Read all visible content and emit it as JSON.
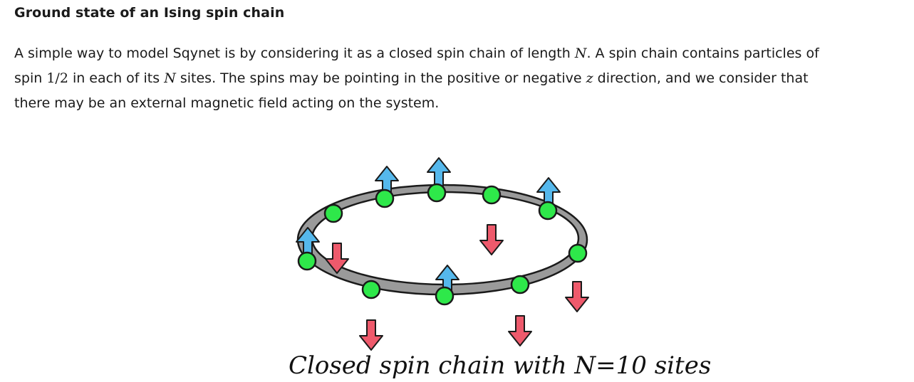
{
  "title": "Ground state of an Ising spin chain",
  "paragraph": {
    "line1": [
      "A simple way to model Sqynet is by considering it as a closed spin chain of length ",
      "N",
      ". A spin chain contains particles of"
    ],
    "line2": [
      "spin ",
      "1/2",
      " in each of its ",
      "N",
      " sites. The spins may be pointing in the positive or negative ",
      "z",
      " direction, and we consider that"
    ],
    "line3": [
      "there may be an external magnetic field acting on the system."
    ]
  },
  "figure": {
    "caption": "Closed spin chain with N=10 sites",
    "colors": {
      "ring_fill": "#9a9a9a",
      "ring_stroke": "#1a1a1a",
      "site": "#2ee84a",
      "spin_up": "#55b8ec",
      "spin_down": "#ee5a6c"
    },
    "sites": [
      {
        "index": 1,
        "spin": "up"
      },
      {
        "index": 2,
        "spin": "up"
      },
      {
        "index": 3,
        "spin": "down"
      },
      {
        "index": 4,
        "spin": "up"
      },
      {
        "index": 5,
        "spin": "down"
      },
      {
        "index": 6,
        "spin": "down"
      },
      {
        "index": 7,
        "spin": "up"
      },
      {
        "index": 8,
        "spin": "down"
      },
      {
        "index": 9,
        "spin": "up"
      },
      {
        "index": 10,
        "spin": "down"
      }
    ]
  }
}
